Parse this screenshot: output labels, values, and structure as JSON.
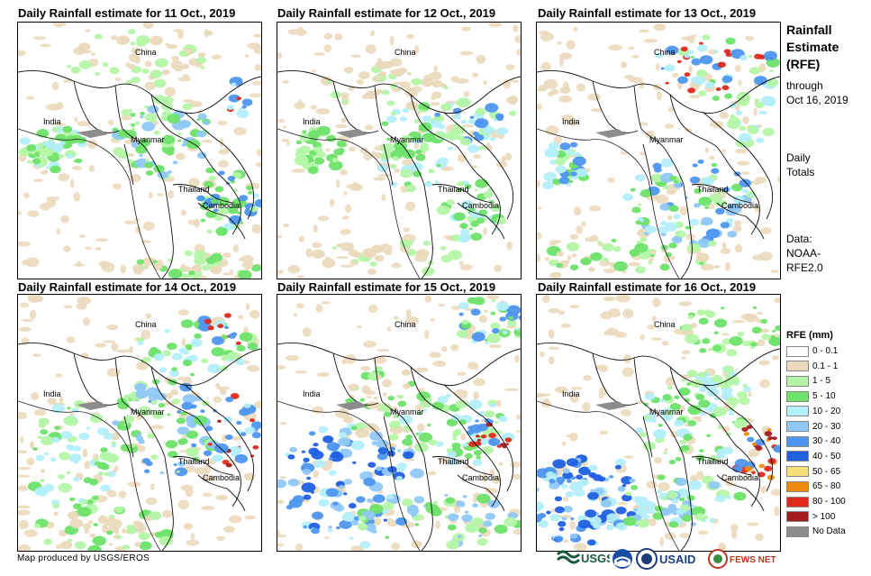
{
  "panels": [
    {
      "title": "Daily Rainfall estimate for 11 Oct., 2019"
    },
    {
      "title": "Daily Rainfall estimate for 12 Oct., 2019"
    },
    {
      "title": "Daily Rainfall estimate for 13 Oct., 2019"
    },
    {
      "title": "Daily Rainfall estimate for 14 Oct., 2019"
    },
    {
      "title": "Daily Rainfall estimate for 15 Oct., 2019"
    },
    {
      "title": "Daily Rainfall estimate for 16 Oct., 2019"
    }
  ],
  "map_labels": {
    "china": "China",
    "india": "India",
    "myanmar": "Myanmar",
    "thailand": "Thailand",
    "cambodia": "Cambodia"
  },
  "side": {
    "title_line1": "Rainfall",
    "title_line2": "Estimate",
    "title_line3": "(RFE)",
    "through": "through",
    "date": "Oct 16, 2019",
    "daily": "Daily",
    "totals": "Totals",
    "data_label": "Data:",
    "data_src1": "NOAA-",
    "data_src2": "RFE2.0"
  },
  "legend": {
    "title": "RFE (mm)",
    "items": [
      {
        "label": "0 - 0.1",
        "color": "#ffffff"
      },
      {
        "label": "0.1 - 1",
        "color": "#ead9bc"
      },
      {
        "label": "1 - 5",
        "color": "#b4f5a8"
      },
      {
        "label": "5 - 10",
        "color": "#6ee26a"
      },
      {
        "label": "10 - 20",
        "color": "#b3eefa"
      },
      {
        "label": "20 - 30",
        "color": "#8fc8f5"
      },
      {
        "label": "30 - 40",
        "color": "#4d96ef"
      },
      {
        "label": "40 - 50",
        "color": "#1f5fe0"
      },
      {
        "label": "50 - 65",
        "color": "#f7e07a"
      },
      {
        "label": "65 - 80",
        "color": "#f08a0f"
      },
      {
        "label": "80 - 100",
        "color": "#e0291c"
      },
      {
        "label": "> 100",
        "color": "#a31b1b"
      },
      {
        "label": "No Data",
        "color": "#8c8c8c"
      }
    ]
  },
  "credit": "Map produced by USGS/EROS",
  "logos": {
    "usgs": "USGS",
    "usaid": "USAID",
    "fewsnet": "FEWS NET"
  }
}
